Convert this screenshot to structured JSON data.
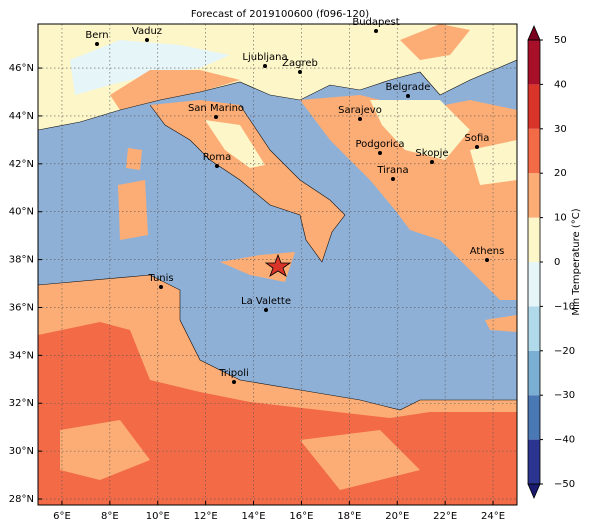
{
  "title": "Forecast of 2019100600 (f096-120)",
  "map": {
    "xlim": [
      5,
      25
    ],
    "ylim": [
      27.75,
      47.84
    ],
    "xticks": [
      {
        "value": 6,
        "label": "6°E"
      },
      {
        "value": 8,
        "label": "8°E"
      },
      {
        "value": 10,
        "label": "10°E"
      },
      {
        "value": 12,
        "label": "12°E"
      },
      {
        "value": 14,
        "label": "14°E"
      },
      {
        "value": 16,
        "label": "16°E"
      },
      {
        "value": 18,
        "label": "18°E"
      },
      {
        "value": 20,
        "label": "20°E"
      },
      {
        "value": 22,
        "label": "22°E"
      },
      {
        "value": 24,
        "label": "24°E"
      }
    ],
    "yticks": [
      {
        "value": 28,
        "label": "28°N"
      },
      {
        "value": 30,
        "label": "30°N"
      },
      {
        "value": 32,
        "label": "32°N"
      },
      {
        "value": 34,
        "label": "34°N"
      },
      {
        "value": 36,
        "label": "36°N"
      },
      {
        "value": 38,
        "label": "38°N"
      },
      {
        "value": 40,
        "label": "40°N"
      },
      {
        "value": 42,
        "label": "42°N"
      },
      {
        "value": 44,
        "label": "44°N"
      },
      {
        "value": 46,
        "label": "46°N"
      }
    ],
    "grid": true,
    "cities": [
      "Bern",
      "Vaduz",
      "Budapest",
      "Ljubljana",
      "Zagreb",
      "Belgrade",
      "San Marino",
      "Sarajevo",
      "Sofia",
      "Podgorica",
      "Skopje",
      "Roma",
      "Tirana",
      "Athens",
      "Tunis",
      "La Valette",
      "Tripoli"
    ]
  },
  "colorbar": {
    "label": "Min Temperature (°C)",
    "lim": [
      -50,
      50
    ],
    "ticks": [
      {
        "value": -50,
        "label": "−50"
      },
      {
        "value": -40,
        "label": "−40"
      },
      {
        "value": -30,
        "label": "−30"
      },
      {
        "value": -20,
        "label": "−20"
      },
      {
        "value": -10,
        "label": "−10"
      },
      0,
      10,
      20,
      30,
      40,
      50
    ],
    "colors": [
      "#2b3590",
      "#4a78b5",
      "#7aaed3",
      "#b0daea",
      "#e6f5f8",
      "#fdf6c8",
      "#fcad75",
      "#f26a46",
      "#d8342a",
      "#a8102a"
    ],
    "under_color": "#1a1a6e",
    "over_color": "#7a0020"
  }
}
